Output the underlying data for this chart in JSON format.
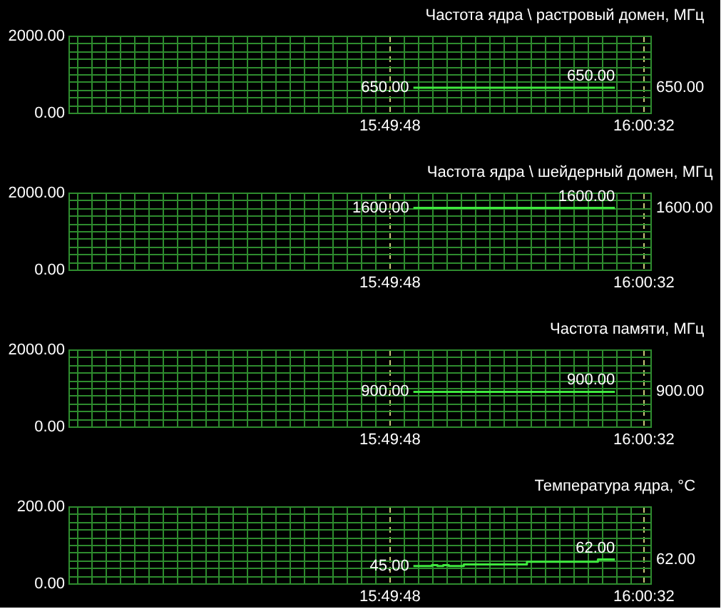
{
  "chart_data": [
    {
      "type": "line",
      "title": "Частота ядра \\ растровый домен, МГц",
      "x": [
        15.847,
        15.989
      ],
      "series": [
        {
          "color": "#3ee83e",
          "values": [
            650,
            650
          ],
          "value_labels": [
            "650.00",
            "650.00"
          ]
        }
      ],
      "xlim": [
        15.604,
        16.014
      ],
      "xticks": [
        {
          "value": 15.61,
          "label": null
        },
        {
          "value": 15.62,
          "label": null
        },
        {
          "value": 15.63,
          "label": null
        },
        {
          "value": 15.64,
          "label": null
        },
        {
          "value": 15.65,
          "label": null
        },
        {
          "value": 15.66,
          "label": null
        },
        {
          "value": 15.67,
          "label": null
        },
        {
          "value": 15.68,
          "label": null
        },
        {
          "value": 15.69,
          "label": null
        },
        {
          "value": 15.7,
          "label": null
        },
        {
          "value": 15.71,
          "label": null
        },
        {
          "value": 15.72,
          "label": null
        },
        {
          "value": 15.73,
          "label": null
        },
        {
          "value": 15.74,
          "label": null
        },
        {
          "value": 15.75,
          "label": null
        },
        {
          "value": 15.76,
          "label": null
        },
        {
          "value": 15.77,
          "label": null
        },
        {
          "value": 15.78,
          "label": null
        },
        {
          "value": 15.79,
          "label": null
        },
        {
          "value": 15.8,
          "label": null
        },
        {
          "value": 15.81,
          "label": null
        },
        {
          "value": 15.82,
          "label": null
        },
        {
          "value": 15.83,
          "label": "15:49:48"
        },
        {
          "value": 15.84,
          "label": null
        },
        {
          "value": 15.85,
          "label": null
        },
        {
          "value": 15.86,
          "label": null
        },
        {
          "value": 15.87,
          "label": null
        },
        {
          "value": 15.88,
          "label": null
        },
        {
          "value": 15.89,
          "label": null
        },
        {
          "value": 15.9,
          "label": null
        },
        {
          "value": 15.91,
          "label": null
        },
        {
          "value": 15.92,
          "label": null
        },
        {
          "value": 15.93,
          "label": null
        },
        {
          "value": 15.94,
          "label": null
        },
        {
          "value": 15.95,
          "label": null
        },
        {
          "value": 15.96,
          "label": null
        },
        {
          "value": 15.97,
          "label": null
        },
        {
          "value": 15.98,
          "label": null
        },
        {
          "value": 15.99,
          "label": null
        },
        {
          "value": 16.0,
          "label": null
        },
        {
          "value": 16.008889,
          "label": "16:00:32"
        }
      ],
      "ylim": [
        0,
        2000
      ],
      "yticks": [
        {
          "value": 0,
          "label": "0.00"
        },
        {
          "value": 200,
          "label": null
        },
        {
          "value": 400,
          "label": null
        },
        {
          "value": 600,
          "label": null
        },
        {
          "value": 800,
          "label": null
        },
        {
          "value": 1000,
          "label": null
        },
        {
          "value": 1200,
          "label": null
        },
        {
          "value": 1400,
          "label": null
        },
        {
          "value": 1600,
          "label": null
        },
        {
          "value": 1800,
          "label": null
        },
        {
          "value": 2000,
          "label": "2000.00"
        }
      ],
      "grid": true,
      "annotations": [
        "650.00"
      ]
    },
    {
      "type": "line",
      "title": "Частота ядра \\ шейдерный домен, МГц",
      "x": [
        15.847,
        15.989
      ],
      "series": [
        {
          "color": "#3ee83e",
          "values": [
            1600,
            1600
          ],
          "value_labels": [
            "1600.00",
            "1600.00"
          ]
        }
      ],
      "xlim": [
        15.604,
        16.014
      ],
      "xticks": [
        {
          "value": 15.61,
          "label": null
        },
        {
          "value": 15.62,
          "label": null
        },
        {
          "value": 15.63,
          "label": null
        },
        {
          "value": 15.64,
          "label": null
        },
        {
          "value": 15.65,
          "label": null
        },
        {
          "value": 15.66,
          "label": null
        },
        {
          "value": 15.67,
          "label": null
        },
        {
          "value": 15.68,
          "label": null
        },
        {
          "value": 15.69,
          "label": null
        },
        {
          "value": 15.7,
          "label": null
        },
        {
          "value": 15.71,
          "label": null
        },
        {
          "value": 15.72,
          "label": null
        },
        {
          "value": 15.73,
          "label": null
        },
        {
          "value": 15.74,
          "label": null
        },
        {
          "value": 15.75,
          "label": null
        },
        {
          "value": 15.76,
          "label": null
        },
        {
          "value": 15.77,
          "label": null
        },
        {
          "value": 15.78,
          "label": null
        },
        {
          "value": 15.79,
          "label": null
        },
        {
          "value": 15.8,
          "label": null
        },
        {
          "value": 15.81,
          "label": null
        },
        {
          "value": 15.82,
          "label": null
        },
        {
          "value": 15.83,
          "label": "15:49:48"
        },
        {
          "value": 15.84,
          "label": null
        },
        {
          "value": 15.85,
          "label": null
        },
        {
          "value": 15.86,
          "label": null
        },
        {
          "value": 15.87,
          "label": null
        },
        {
          "value": 15.88,
          "label": null
        },
        {
          "value": 15.89,
          "label": null
        },
        {
          "value": 15.9,
          "label": null
        },
        {
          "value": 15.91,
          "label": null
        },
        {
          "value": 15.92,
          "label": null
        },
        {
          "value": 15.93,
          "label": null
        },
        {
          "value": 15.94,
          "label": null
        },
        {
          "value": 15.95,
          "label": null
        },
        {
          "value": 15.96,
          "label": null
        },
        {
          "value": 15.97,
          "label": null
        },
        {
          "value": 15.98,
          "label": null
        },
        {
          "value": 15.99,
          "label": null
        },
        {
          "value": 16.0,
          "label": null
        },
        {
          "value": 16.008889,
          "label": "16:00:32"
        }
      ],
      "ylim": [
        0,
        2000
      ],
      "yticks": [
        {
          "value": 0,
          "label": "0.00"
        },
        {
          "value": 200,
          "label": null
        },
        {
          "value": 400,
          "label": null
        },
        {
          "value": 600,
          "label": null
        },
        {
          "value": 800,
          "label": null
        },
        {
          "value": 1000,
          "label": null
        },
        {
          "value": 1200,
          "label": null
        },
        {
          "value": 1400,
          "label": null
        },
        {
          "value": 1600,
          "label": null
        },
        {
          "value": 1800,
          "label": null
        },
        {
          "value": 2000,
          "label": "2000.00"
        }
      ],
      "grid": true,
      "annotations": [
        "1600.00"
      ]
    },
    {
      "type": "line",
      "title": "Частота памяти, МГц",
      "x": [
        15.847,
        15.989
      ],
      "series": [
        {
          "color": "#3ee83e",
          "values": [
            900,
            900
          ],
          "value_labels": [
            "900.00",
            "900.00"
          ]
        }
      ],
      "xlim": [
        15.604,
        16.014
      ],
      "xticks": [
        {
          "value": 15.61,
          "label": null
        },
        {
          "value": 15.62,
          "label": null
        },
        {
          "value": 15.63,
          "label": null
        },
        {
          "value": 15.64,
          "label": null
        },
        {
          "value": 15.65,
          "label": null
        },
        {
          "value": 15.66,
          "label": null
        },
        {
          "value": 15.67,
          "label": null
        },
        {
          "value": 15.68,
          "label": null
        },
        {
          "value": 15.69,
          "label": null
        },
        {
          "value": 15.7,
          "label": null
        },
        {
          "value": 15.71,
          "label": null
        },
        {
          "value": 15.72,
          "label": null
        },
        {
          "value": 15.73,
          "label": null
        },
        {
          "value": 15.74,
          "label": null
        },
        {
          "value": 15.75,
          "label": null
        },
        {
          "value": 15.76,
          "label": null
        },
        {
          "value": 15.77,
          "label": null
        },
        {
          "value": 15.78,
          "label": null
        },
        {
          "value": 15.79,
          "label": null
        },
        {
          "value": 15.8,
          "label": null
        },
        {
          "value": 15.81,
          "label": null
        },
        {
          "value": 15.82,
          "label": null
        },
        {
          "value": 15.83,
          "label": "15:49:48"
        },
        {
          "value": 15.84,
          "label": null
        },
        {
          "value": 15.85,
          "label": null
        },
        {
          "value": 15.86,
          "label": null
        },
        {
          "value": 15.87,
          "label": null
        },
        {
          "value": 15.88,
          "label": null
        },
        {
          "value": 15.89,
          "label": null
        },
        {
          "value": 15.9,
          "label": null
        },
        {
          "value": 15.91,
          "label": null
        },
        {
          "value": 15.92,
          "label": null
        },
        {
          "value": 15.93,
          "label": null
        },
        {
          "value": 15.94,
          "label": null
        },
        {
          "value": 15.95,
          "label": null
        },
        {
          "value": 15.96,
          "label": null
        },
        {
          "value": 15.97,
          "label": null
        },
        {
          "value": 15.98,
          "label": null
        },
        {
          "value": 15.99,
          "label": null
        },
        {
          "value": 16.0,
          "label": null
        },
        {
          "value": 16.008889,
          "label": "16:00:32"
        }
      ],
      "ylim": [
        0,
        2000
      ],
      "yticks": [
        {
          "value": 0,
          "label": "0.00"
        },
        {
          "value": 200,
          "label": null
        },
        {
          "value": 400,
          "label": null
        },
        {
          "value": 600,
          "label": null
        },
        {
          "value": 800,
          "label": null
        },
        {
          "value": 1000,
          "label": null
        },
        {
          "value": 1200,
          "label": null
        },
        {
          "value": 1400,
          "label": null
        },
        {
          "value": 1600,
          "label": null
        },
        {
          "value": 1800,
          "label": null
        },
        {
          "value": 2000,
          "label": "2000.00"
        }
      ],
      "grid": true,
      "annotations": [
        "900.00"
      ]
    },
    {
      "type": "step",
      "title": "Температура ядра, °C",
      "x": [
        15.847,
        15.857,
        15.86,
        15.864,
        15.868,
        15.872,
        15.8825,
        15.927,
        15.977,
        15.989
      ],
      "series": [
        {
          "color": "#3ee83e",
          "values": [
            45,
            45,
            47,
            45,
            47,
            45,
            49,
            56,
            62,
            62
          ],
          "value_labels": [
            "45.00",
            null,
            null,
            null,
            null,
            null,
            null,
            null,
            null,
            "62.00"
          ]
        }
      ],
      "xlim": [
        15.604,
        16.014
      ],
      "xticks": [
        {
          "value": 15.61,
          "label": null
        },
        {
          "value": 15.62,
          "label": null
        },
        {
          "value": 15.63,
          "label": null
        },
        {
          "value": 15.64,
          "label": null
        },
        {
          "value": 15.65,
          "label": null
        },
        {
          "value": 15.66,
          "label": null
        },
        {
          "value": 15.67,
          "label": null
        },
        {
          "value": 15.68,
          "label": null
        },
        {
          "value": 15.69,
          "label": null
        },
        {
          "value": 15.7,
          "label": null
        },
        {
          "value": 15.71,
          "label": null
        },
        {
          "value": 15.72,
          "label": null
        },
        {
          "value": 15.73,
          "label": null
        },
        {
          "value": 15.74,
          "label": null
        },
        {
          "value": 15.75,
          "label": null
        },
        {
          "value": 15.76,
          "label": null
        },
        {
          "value": 15.77,
          "label": null
        },
        {
          "value": 15.78,
          "label": null
        },
        {
          "value": 15.79,
          "label": null
        },
        {
          "value": 15.8,
          "label": null
        },
        {
          "value": 15.81,
          "label": null
        },
        {
          "value": 15.82,
          "label": null
        },
        {
          "value": 15.83,
          "label": "15:49:48"
        },
        {
          "value": 15.84,
          "label": null
        },
        {
          "value": 15.85,
          "label": null
        },
        {
          "value": 15.86,
          "label": null
        },
        {
          "value": 15.87,
          "label": null
        },
        {
          "value": 15.88,
          "label": null
        },
        {
          "value": 15.89,
          "label": null
        },
        {
          "value": 15.9,
          "label": null
        },
        {
          "value": 15.91,
          "label": null
        },
        {
          "value": 15.92,
          "label": null
        },
        {
          "value": 15.93,
          "label": null
        },
        {
          "value": 15.94,
          "label": null
        },
        {
          "value": 15.95,
          "label": null
        },
        {
          "value": 15.96,
          "label": null
        },
        {
          "value": 15.97,
          "label": null
        },
        {
          "value": 15.98,
          "label": null
        },
        {
          "value": 15.99,
          "label": null
        },
        {
          "value": 16.0,
          "label": null
        },
        {
          "value": 16.008889,
          "label": "16:00:32"
        }
      ],
      "ylim": [
        0,
        200
      ],
      "yticks": [
        {
          "value": 0,
          "label": "0.00"
        },
        {
          "value": 20,
          "label": null
        },
        {
          "value": 40,
          "label": null
        },
        {
          "value": 60,
          "label": null
        },
        {
          "value": 80,
          "label": null
        },
        {
          "value": 100,
          "label": null
        },
        {
          "value": 120,
          "label": null
        },
        {
          "value": 140,
          "label": null
        },
        {
          "value": 160,
          "label": null
        },
        {
          "value": 180,
          "label": null
        },
        {
          "value": 200,
          "label": "200.00"
        }
      ],
      "grid": true,
      "annotations": [
        "62.00"
      ]
    }
  ]
}
